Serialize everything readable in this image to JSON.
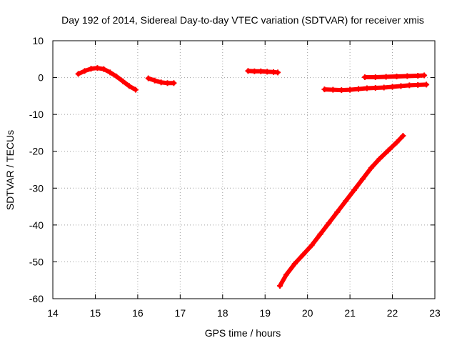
{
  "chart_data": {
    "type": "scatter",
    "title": "Day 192 of 2014, Sidereal Day-to-day VTEC variation (SDTVAR) for receiver xmis",
    "xlabel": "GPS time / hours",
    "ylabel": "SDTVAR / TECUs",
    "xlim": [
      14,
      23
    ],
    "ylim": [
      -60,
      10
    ],
    "xticks": [
      14,
      15,
      16,
      17,
      18,
      19,
      20,
      21,
      22,
      23
    ],
    "yticks": [
      -60,
      -50,
      -40,
      -30,
      -20,
      -10,
      0,
      10
    ],
    "grid": true,
    "color": "#ff0000",
    "series": [
      {
        "x": [
          14.6,
          14.75,
          14.9,
          15.05,
          15.2,
          15.35,
          15.5,
          15.65,
          15.8,
          15.95
        ],
        "y": [
          1.0,
          1.8,
          2.4,
          2.6,
          2.3,
          1.4,
          0.3,
          -1.0,
          -2.3,
          -3.3
        ]
      },
      {
        "x": [
          16.25,
          16.4,
          16.55,
          16.7,
          16.85
        ],
        "y": [
          -0.2,
          -0.8,
          -1.3,
          -1.5,
          -1.5
        ]
      },
      {
        "x": [
          18.6,
          18.75,
          18.9,
          19.05,
          19.2,
          19.3
        ],
        "y": [
          1.8,
          1.7,
          1.7,
          1.6,
          1.5,
          1.4
        ]
      },
      {
        "x": [
          20.4,
          20.6,
          20.8,
          21.0,
          21.2,
          21.4,
          21.6,
          21.8,
          22.0,
          22.2,
          22.4,
          22.6,
          22.8
        ],
        "y": [
          -3.2,
          -3.3,
          -3.4,
          -3.3,
          -3.1,
          -2.9,
          -2.8,
          -2.7,
          -2.5,
          -2.3,
          -2.1,
          -2.0,
          -1.9
        ]
      },
      {
        "x": [
          21.35,
          21.6,
          21.85,
          22.1,
          22.35,
          22.6,
          22.75
        ],
        "y": [
          0.1,
          0.1,
          0.2,
          0.3,
          0.4,
          0.5,
          0.6
        ]
      },
      {
        "x": [
          19.35,
          19.5,
          19.7,
          19.9,
          20.1,
          20.3,
          20.5,
          20.7,
          20.9,
          21.1,
          21.3,
          21.5,
          21.7,
          21.9,
          22.1,
          22.25
        ],
        "y": [
          -56.5,
          -53.5,
          -50.5,
          -48.0,
          -45.5,
          -42.5,
          -39.5,
          -36.5,
          -33.5,
          -30.5,
          -27.5,
          -24.5,
          -22.0,
          -19.8,
          -17.6,
          -15.8
        ]
      }
    ]
  }
}
